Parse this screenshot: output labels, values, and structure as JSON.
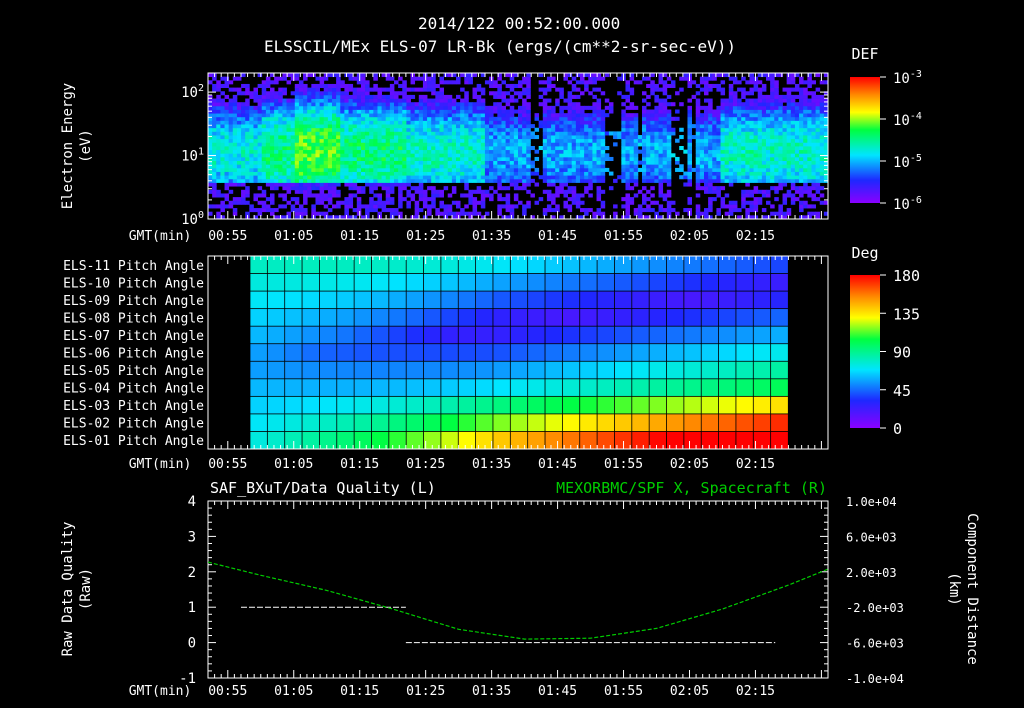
{
  "header": {
    "timestamp": "2014/122 00:52:00.000",
    "title": "ELSSCIL/MEx ELS-07 LR-Bk  (ergs/(cm**2-sr-sec-eV))"
  },
  "chart_data": [
    {
      "type": "heatmap",
      "name": "electron-energy-spectrogram",
      "ylabel": "Electron Energy (eV)",
      "ylabel_lines": [
        "Electron Energy",
        "(eV)"
      ],
      "yscale": "log",
      "ylim": [
        1,
        200
      ],
      "y_ticks": [
        {
          "exp": "2",
          "value": 100
        },
        {
          "exp": "1",
          "value": 10
        },
        {
          "exp": "0",
          "value": 1
        }
      ],
      "xlabel": "GMT(min)",
      "x_ticks": [
        "00:55",
        "01:05",
        "01:15",
        "01:25",
        "01:35",
        "01:45",
        "01:55",
        "02:05",
        "02:15"
      ],
      "colorbar": {
        "title": "DEF",
        "scale": "log",
        "range": [
          1e-06,
          0.001
        ],
        "ticks": [
          {
            "exp": "-3",
            "value": 0.001
          },
          {
            "exp": "-4",
            "value": 0.0001
          },
          {
            "exp": "-5",
            "value": 1e-05
          },
          {
            "exp": "-6",
            "value": 1e-06
          }
        ]
      }
    },
    {
      "type": "heatmap",
      "name": "pitch-angle-grid",
      "rows": [
        "ELS-11 Pitch Angle",
        "ELS-10 Pitch Angle",
        "ELS-09 Pitch Angle",
        "ELS-08 Pitch Angle",
        "ELS-07 Pitch Angle",
        "ELS-06 Pitch Angle",
        "ELS-05 Pitch Angle",
        "ELS-04 Pitch Angle",
        "ELS-03 Pitch Angle",
        "ELS-02 Pitch Angle",
        "ELS-01 Pitch Angle"
      ],
      "xlabel": "GMT(min)",
      "x_ticks": [
        "00:55",
        "01:05",
        "01:15",
        "01:25",
        "01:35",
        "01:45",
        "01:55",
        "02:05",
        "02:15"
      ],
      "colorbar": {
        "title": "Deg",
        "range": [
          0,
          180
        ],
        "ticks": [
          "180",
          "135",
          "90",
          "45",
          "0"
        ]
      }
    },
    {
      "type": "line",
      "name": "data-quality-and-position",
      "left_title": "SAF_BXuT/Data Quality (L)",
      "right_title": "MEXORBMC/SPF X, Spacecraft (R)",
      "ylabel_left_lines": [
        "Raw Data Quality",
        "(Raw)"
      ],
      "ylabel_right_lines": [
        "Component Distance",
        "(km)"
      ],
      "ylim_left": [
        -1,
        4
      ],
      "y_ticks_left": [
        "4",
        "3",
        "2",
        "1",
        "0",
        "-1"
      ],
      "ylim_right": [
        -10000,
        10000
      ],
      "y_ticks_right": [
        "1.0e+04",
        "6.0e+03",
        "2.0e+03",
        "-2.0e+03",
        "-6.0e+03",
        "-1.0e+04"
      ],
      "xlabel": "GMT(min)",
      "x_ticks": [
        "00:55",
        "01:05",
        "01:15",
        "01:25",
        "01:35",
        "01:45",
        "01:55",
        "02:05",
        "02:15"
      ],
      "series": [
        {
          "name": "Data Quality",
          "axis": "left",
          "color": "#ffffff",
          "segments": [
            {
              "t": [
                57,
                82
              ],
              "value": 1
            },
            {
              "t": [
                82,
                138
              ],
              "value": 0
            }
          ]
        },
        {
          "name": "SPF X, Spacecraft",
          "axis": "right",
          "color": "#00cc00",
          "t": [
            52,
            60,
            70,
            80,
            90,
            100,
            110,
            120,
            130,
            140,
            146
          ],
          "values": [
            3100,
            1600,
            -100,
            -2200,
            -4500,
            -5600,
            -5500,
            -4400,
            -2200,
            500,
            2300
          ]
        }
      ]
    }
  ]
}
